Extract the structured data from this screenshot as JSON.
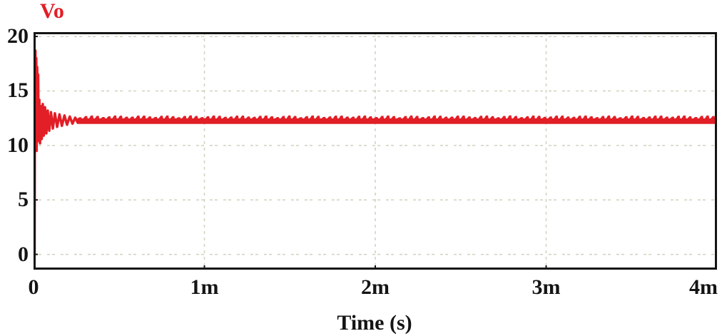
{
  "chart_data": {
    "type": "line",
    "title": "Vo",
    "xlabel": "Time (s)",
    "ylabel": "",
    "x_unit_suffix": "m",
    "x_range_ms": [
      0,
      4
    ],
    "y_range": [
      -1.4,
      20.4
    ],
    "grid": true,
    "legend_position": "top-left",
    "y_ticks": [
      {
        "value": 20,
        "label": "20"
      },
      {
        "value": 15,
        "label": "15"
      },
      {
        "value": 10,
        "label": "10"
      },
      {
        "value": 5,
        "label": "5"
      },
      {
        "value": 0,
        "label": "0"
      }
    ],
    "x_ticks": [
      {
        "value_ms": 0,
        "label": "0"
      },
      {
        "value_ms": 1,
        "label": "1m"
      },
      {
        "value_ms": 2,
        "label": "2m"
      },
      {
        "value_ms": 3,
        "label": "3m"
      },
      {
        "value_ms": 4,
        "label": "4m"
      }
    ],
    "y_gridlines": [
      0,
      5,
      10,
      15,
      20
    ],
    "x_gridlines_ms": [
      1,
      2,
      3
    ],
    "colors": {
      "trace": "#e21e26",
      "grid": "#ccd4be",
      "border": "#141414",
      "text": "#141414",
      "title": "#e21e26",
      "background": "#ffffff"
    },
    "series": [
      {
        "name": "Vo",
        "transient_points_ms_v": [
          [
            0,
            0
          ],
          [
            0.006,
            0
          ],
          [
            0.008,
            18.4
          ],
          [
            0.011,
            18.7
          ],
          [
            0.013,
            15.2
          ],
          [
            0.016,
            18.0
          ],
          [
            0.018,
            9.5
          ],
          [
            0.021,
            17.2
          ],
          [
            0.024,
            15.0
          ],
          [
            0.027,
            16.5
          ],
          [
            0.03,
            10.4
          ],
          [
            0.034,
            14.2
          ],
          [
            0.038,
            10.2
          ],
          [
            0.043,
            13.6
          ],
          [
            0.048,
            10.6
          ],
          [
            0.054,
            13.8
          ],
          [
            0.06,
            10.9
          ],
          [
            0.067,
            13.5
          ],
          [
            0.075,
            11.1
          ],
          [
            0.083,
            13.2
          ],
          [
            0.092,
            11.35
          ],
          [
            0.102,
            13.05
          ],
          [
            0.113,
            11.55
          ],
          [
            0.125,
            12.95
          ],
          [
            0.138,
            11.7
          ],
          [
            0.152,
            12.85
          ],
          [
            0.166,
            11.8
          ],
          [
            0.181,
            12.75
          ],
          [
            0.196,
            11.9
          ],
          [
            0.212,
            12.65
          ],
          [
            0.228,
            12.0
          ],
          [
            0.244,
            12.55
          ],
          [
            0.258,
            12.1
          ]
        ],
        "steady_state": {
          "t_start_ms": 0.258,
          "t_end_ms": 4.0,
          "mean_v": 12.2,
          "band_low_v": 12.0,
          "band_high_v": 12.45,
          "bump_min_v": 12.55,
          "bump_max_v": 12.72,
          "bump_period_ms": 0.034
        },
        "peak_v": 18.7,
        "undershoot_v": 9.5
      }
    ]
  }
}
